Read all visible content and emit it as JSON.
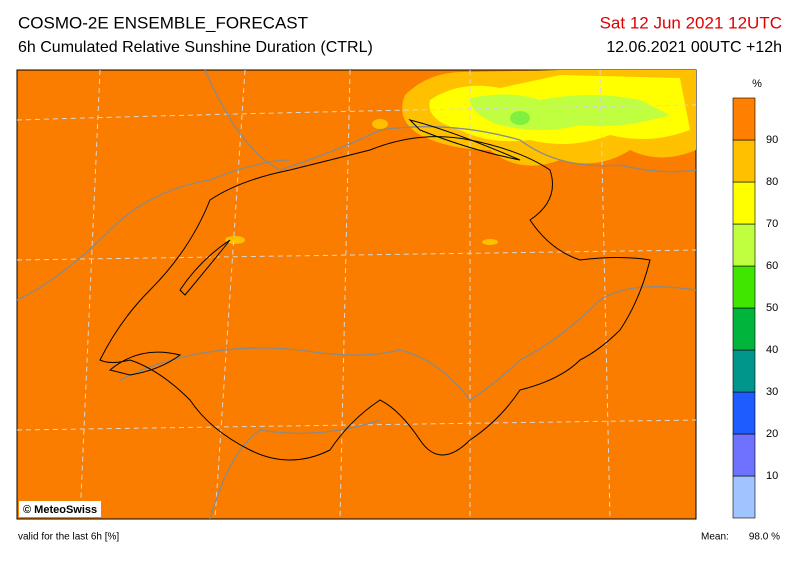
{
  "header": {
    "title": "COSMO-2E ENSEMBLE_FORECAST",
    "subtitle": "6h Cumulated Relative Sunshine Duration (CTRL)",
    "valid_time": "Sat 12 Jun 2021 12UTC",
    "run": "12.06.2021 00UTC +12h"
  },
  "map": {
    "credit": "© MeteoSwiss"
  },
  "legend": {
    "unit": "%",
    "ticks": [
      "10",
      "20",
      "30",
      "40",
      "50",
      "60",
      "70",
      "80",
      "90"
    ],
    "colors": [
      "#a0c4ff",
      "#6e72ff",
      "#1e5cff",
      "#00968c",
      "#00b43c",
      "#40e600",
      "#c0ff40",
      "#ffff00",
      "#ffc000",
      "#ff8000"
    ]
  },
  "footer": {
    "note": "valid for the last 6h [%]",
    "mean_label": "Mean:",
    "mean_value": "98.0 %"
  }
}
